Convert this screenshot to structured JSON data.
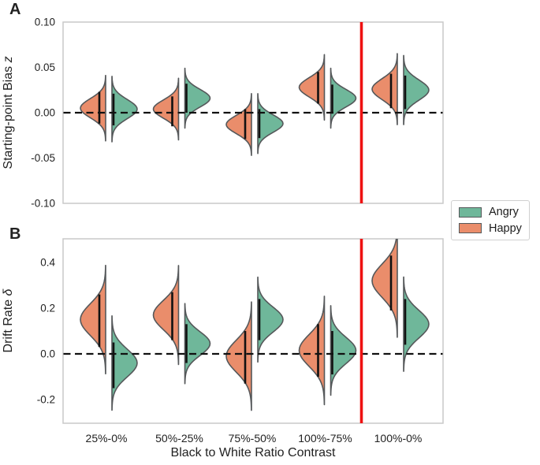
{
  "figure": {
    "panels": [
      {
        "letter": "A",
        "ylabel_text": "Starting-point Bias ",
        "ylabel_italic": "z",
        "ytick_labels": [
          "0.10",
          "0.05",
          "0.00",
          "-0.05",
          "-0.10"
        ],
        "ytick_values": [
          0.1,
          0.05,
          0.0,
          -0.05,
          -0.1
        ]
      },
      {
        "letter": "B",
        "ylabel_text": "Drift Rate ",
        "ylabel_italic": "δ",
        "ytick_labels": [
          "0.4",
          "0.2",
          "0.0",
          "-0.2"
        ],
        "ytick_values": [
          0.4,
          0.2,
          0.0,
          -0.2
        ]
      }
    ],
    "categories": [
      "25%-0%",
      "50%-25%",
      "75%-50%",
      "100%-75%",
      "100%-0%"
    ],
    "xlabel": "Black to White Ratio Contrast",
    "legend": {
      "items": [
        {
          "label": "Angry",
          "color": "#6FB79A"
        },
        {
          "label": "Happy",
          "color": "#EA8D6B"
        }
      ]
    },
    "colors": {
      "happy": "#EA8D6B",
      "angry": "#6FB79A",
      "outline": "#55585A",
      "zero_line": "#111111",
      "red_divider": "#EE1111",
      "panel_border": "#C9C9C9",
      "ci_bar": "#111111"
    },
    "red_divider_between": [
      "100%-75%",
      "100%-0%"
    ]
  },
  "chart_data": [
    {
      "type": "violin",
      "panel": "A",
      "title": "",
      "ylabel": "Starting-point Bias z",
      "xlabel": "Black to White Ratio Contrast",
      "categories": [
        "25%-0%",
        "50%-25%",
        "75%-50%",
        "100%-75%",
        "100%-0%"
      ],
      "ylim": [
        -0.1,
        0.1
      ],
      "yticks": [
        0.1,
        0.05,
        0.0,
        -0.05,
        -0.1
      ],
      "zero_reference_line": 0,
      "legend_position": "right",
      "grid": false,
      "series": [
        {
          "name": "Happy",
          "side": "left",
          "color": "#EA8D6B",
          "means": [
            0.005,
            0.004,
            -0.013,
            0.028,
            0.026
          ],
          "ci_low": [
            -0.012,
            -0.015,
            -0.029,
            0.01,
            0.005
          ],
          "ci_high": [
            0.023,
            0.018,
            0.004,
            0.045,
            0.043
          ]
        },
        {
          "name": "Angry",
          "side": "right",
          "color": "#6FB79A",
          "means": [
            0.004,
            0.016,
            -0.012,
            0.016,
            0.025
          ],
          "ci_low": [
            -0.014,
            0.0,
            -0.028,
            -0.001,
            0.004
          ],
          "ci_high": [
            0.021,
            0.032,
            0.004,
            0.031,
            0.041
          ]
        }
      ]
    },
    {
      "type": "violin",
      "panel": "B",
      "title": "",
      "ylabel": "Drift Rate δ",
      "xlabel": "Black to White Ratio Contrast",
      "categories": [
        "25%-0%",
        "50%-25%",
        "75%-50%",
        "100%-75%",
        "100%-0%"
      ],
      "ylim": [
        -0.3,
        0.5
      ],
      "yticks": [
        0.4,
        0.2,
        0.0,
        -0.2
      ],
      "zero_reference_line": 0,
      "legend_position": "right",
      "grid": false,
      "series": [
        {
          "name": "Happy",
          "side": "left",
          "color": "#EA8D6B",
          "means": [
            0.15,
            0.17,
            -0.01,
            0.015,
            0.32
          ],
          "ci_low": [
            0.03,
            0.06,
            -0.13,
            -0.1,
            0.19
          ],
          "ci_high": [
            0.26,
            0.27,
            0.1,
            0.13,
            0.43
          ]
        },
        {
          "name": "Angry",
          "side": "right",
          "color": "#6FB79A",
          "means": [
            -0.04,
            0.045,
            0.15,
            0.015,
            0.13
          ],
          "ci_low": [
            -0.15,
            -0.04,
            0.06,
            -0.09,
            0.04
          ],
          "ci_high": [
            0.05,
            0.13,
            0.24,
            0.1,
            0.24
          ]
        }
      ]
    }
  ]
}
